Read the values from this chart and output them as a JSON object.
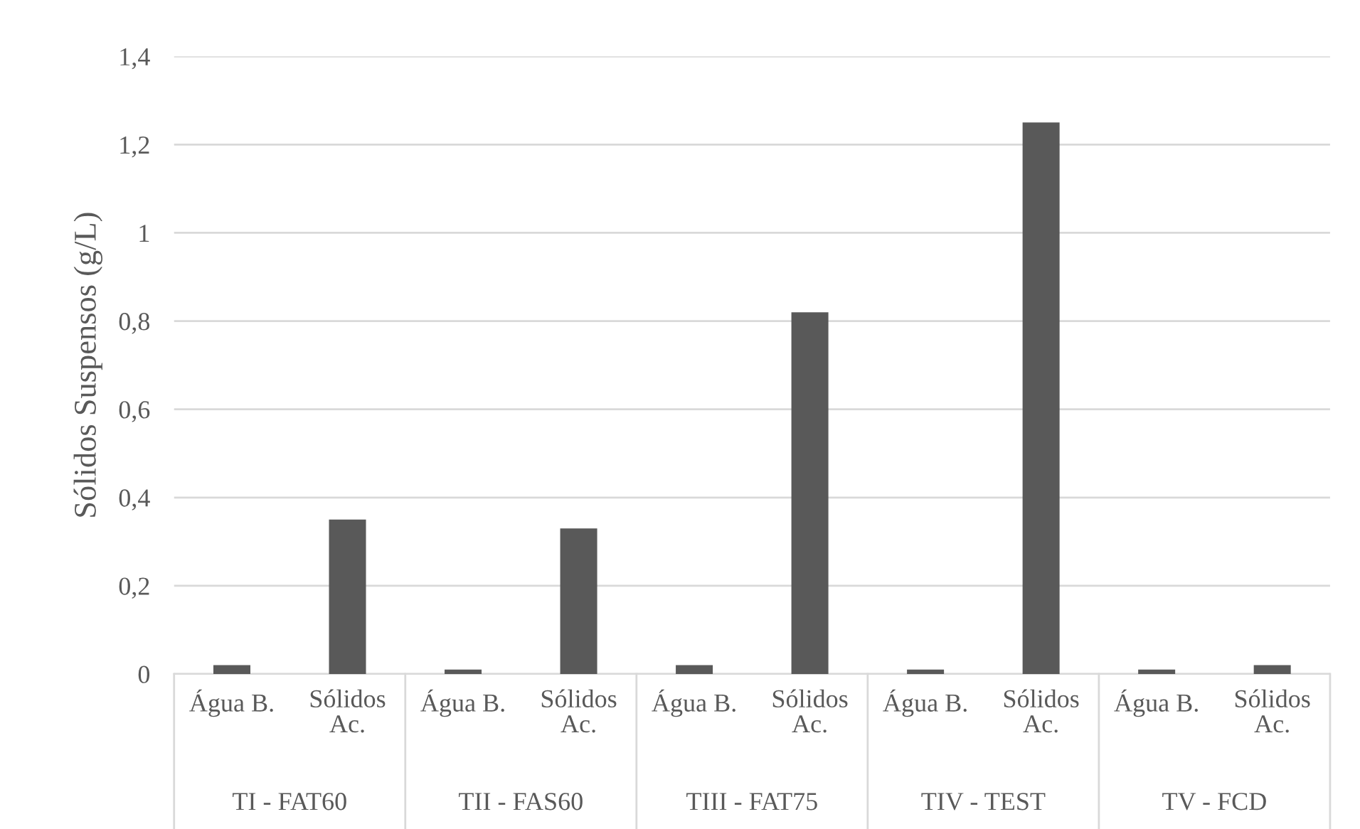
{
  "chart_data": {
    "type": "bar",
    "ylabel": "Sólidos Suspensos (g/L)",
    "categories": [
      "Água B.",
      "Sólidos Ac.",
      "Água B.",
      "Sólidos Ac.",
      "Água B.",
      "Sólidos Ac.",
      "Água B.",
      "Sólidos Ac.",
      "Água B.",
      "Sólidos Ac."
    ],
    "values": [
      0.02,
      0.35,
      0.01,
      0.33,
      0.02,
      0.82,
      0.01,
      1.25,
      0.01,
      0.02
    ],
    "color": "#595959",
    "annotations": [
      "TI - FAT60",
      "TII - FAS60",
      "TIII - FAT75",
      "TIV - TEST",
      "TV - FCD"
    ],
    "ylim": [
      0,
      1.4
    ],
    "yticks": [
      {
        "value": 0,
        "label": "0"
      },
      {
        "value": 0.2,
        "label": "0,2"
      },
      {
        "value": 0.4,
        "label": "0,4"
      },
      {
        "value": 0.6,
        "label": "0,6"
      },
      {
        "value": 0.8,
        "label": "0,8"
      },
      {
        "value": 1,
        "label": "1"
      },
      {
        "value": 1.2,
        "label": "1,2"
      },
      {
        "value": 1.4,
        "label": "1,4"
      }
    ],
    "grid": "y"
  }
}
